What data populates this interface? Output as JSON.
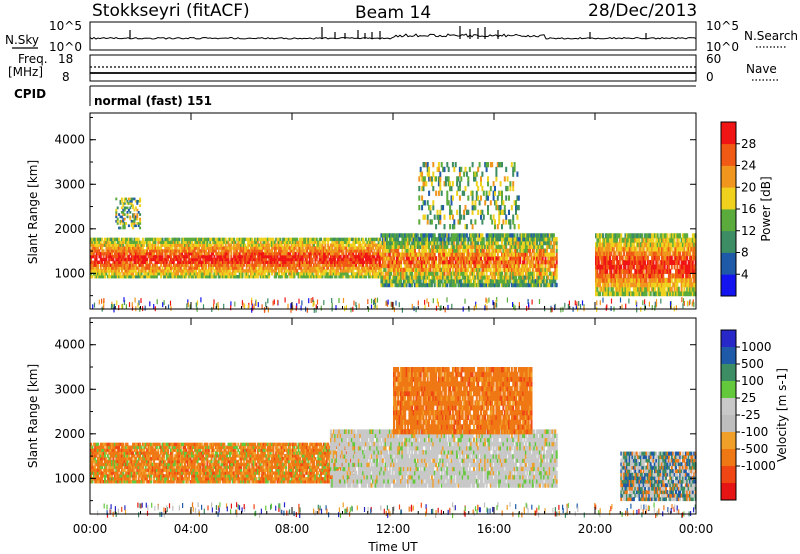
{
  "header": {
    "station": "Stokkseyri (fitACF)",
    "beam": "Beam 14",
    "date": "28/Dec/2013"
  },
  "strips": {
    "nsky_label": "N.Sky",
    "nsky_ticks": [
      "10^5",
      "10^0"
    ],
    "nsearch_label": "N.Search",
    "nsearch_ticks": [
      "10^5",
      "10^0"
    ],
    "freq_label_top": "Freq.",
    "freq_label_unit": "[MHz]",
    "freq_ticks": [
      "18",
      "8"
    ],
    "nave_label": "Nave",
    "nave_ticks": [
      "60",
      "0"
    ],
    "cpid_label": "CPID",
    "cpid_value": "normal (fast) 151"
  },
  "colors": {
    "power_scale": [
      "#1414f0",
      "#1e5aa8",
      "#3c8c64",
      "#5aaa3c",
      "#f0d21e",
      "#f0961e",
      "#f05a14",
      "#f01414"
    ],
    "velocity_scale": [
      "#e61414",
      "#f04614",
      "#f07814",
      "#f0a028",
      "#bebebe",
      "#c8c8c8",
      "#64c83c",
      "#3c8c64",
      "#1e5aa8",
      "#2828c8"
    ],
    "gray_scatter": "#c8c8c8"
  },
  "chart_data": [
    {
      "type": "heatmap",
      "panel": "power",
      "ylabel": "Slant Range [km]",
      "yticks": [
        "1000",
        "2000",
        "3000",
        "4000"
      ],
      "ylim": [
        200,
        4600
      ],
      "xticks": [
        "00:00",
        "04:00",
        "08:00",
        "12:00",
        "16:00",
        "20:00",
        "00:00"
      ],
      "xlim_hours": [
        0,
        24
      ],
      "colorbar_label": "Power [dB]",
      "colorbar_ticks": [
        "4",
        "8",
        "12",
        "16",
        "20",
        "24",
        "28"
      ],
      "regions": [
        {
          "t0": 0.0,
          "t1": 11.5,
          "r0": 900,
          "r1": 1800,
          "level": "high"
        },
        {
          "t0": 11.5,
          "t1": 18.5,
          "r0": 700,
          "r1": 1900,
          "level": "medium"
        },
        {
          "t0": 13.0,
          "t1": 17.0,
          "r0": 2000,
          "r1": 3500,
          "level": "scattered"
        },
        {
          "t0": 20.0,
          "t1": 24.0,
          "r0": 500,
          "r1": 1900,
          "level": "high"
        },
        {
          "t0": 1.0,
          "t1": 2.0,
          "r0": 2000,
          "r1": 2700,
          "level": "low"
        }
      ]
    },
    {
      "type": "heatmap",
      "panel": "velocity",
      "ylabel": "Slant Range [km]",
      "yticks": [
        "1000",
        "2000",
        "3000",
        "4000"
      ],
      "ylim": [
        200,
        4600
      ],
      "xticks": [
        "00:00",
        "04:00",
        "08:00",
        "12:00",
        "16:00",
        "20:00",
        "00:00"
      ],
      "xlim_hours": [
        0,
        24
      ],
      "xlabel": "Time UT",
      "colorbar_label": "Velocity [m s-1]",
      "colorbar_ticks": [
        "1000",
        "500",
        "100",
        "25",
        "-25",
        "-100",
        "-500",
        "-1000"
      ],
      "regions": [
        {
          "t0": 0.0,
          "t1": 10.5,
          "r0": 900,
          "r1": 1800,
          "level": "toward-moderate"
        },
        {
          "t0": 9.5,
          "t1": 18.5,
          "r0": 800,
          "r1": 2100,
          "level": "near-zero"
        },
        {
          "t0": 12.0,
          "t1": 17.5,
          "r0": 2000,
          "r1": 3500,
          "level": "toward-fast"
        },
        {
          "t0": 21.0,
          "t1": 24.0,
          "r0": 500,
          "r1": 1600,
          "level": "mixed"
        }
      ]
    }
  ]
}
